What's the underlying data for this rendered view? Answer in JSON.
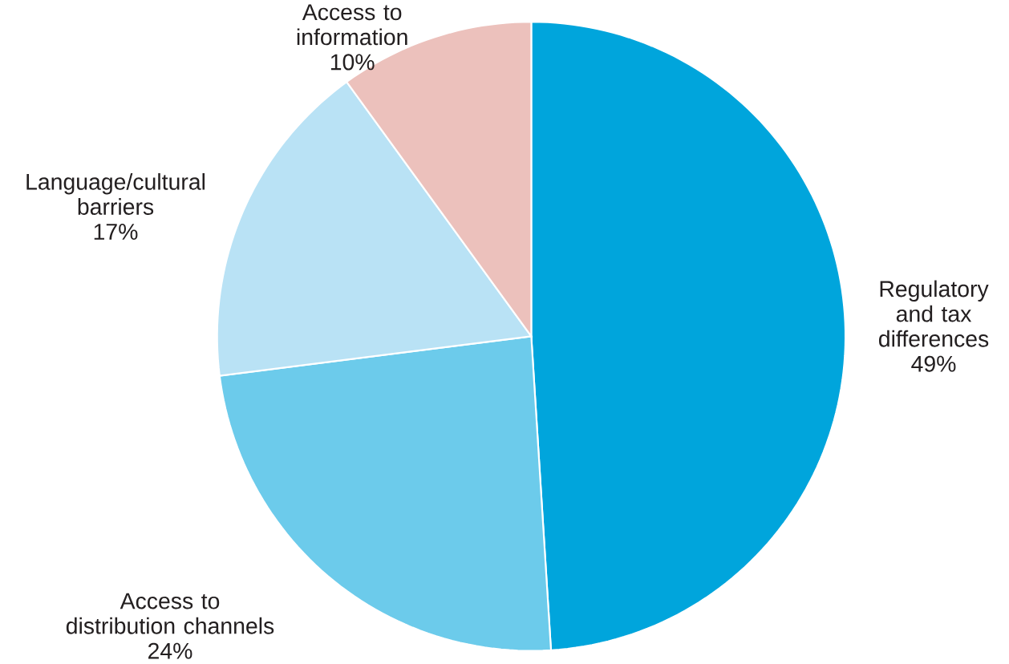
{
  "chart_data": {
    "type": "pie",
    "categories": [
      "Regulatory and tax differences",
      "Access to distribution channels",
      "Language/cultural barriers",
      "Access to information"
    ],
    "values": [
      49,
      24,
      17,
      10
    ],
    "value_labels": [
      "49%",
      "24%",
      "17%",
      "10%"
    ],
    "colors": [
      "#00a5dc",
      "#6ccbeb",
      "#b9e2f5",
      "#ecc1bc"
    ]
  }
}
